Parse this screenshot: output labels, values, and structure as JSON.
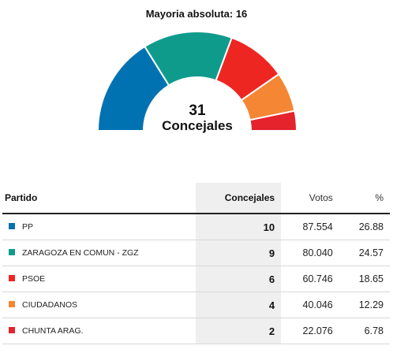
{
  "header": {
    "majority_label": "Mayoria absoluta: 16"
  },
  "chart_data": {
    "type": "pie",
    "subtype": "hemicycle",
    "total_seats": "31",
    "total_label": "Concejales",
    "columns": {
      "party": "Partido",
      "seats": "Concejales",
      "votes": "Votos",
      "pct": "%"
    },
    "rows": [
      {
        "party": "PP",
        "seats": 10,
        "seats_label": "10",
        "votes": "87.554",
        "pct": "26.88",
        "color": "#0072b2"
      },
      {
        "party": "ZARAGOZA EN COMUN - ZGZ",
        "seats": 9,
        "seats_label": "9",
        "votes": "80.040",
        "pct": "24.57",
        "color": "#0f9b8c"
      },
      {
        "party": "PSOE",
        "seats": 6,
        "seats_label": "6",
        "votes": "60.746",
        "pct": "18.65",
        "color": "#ee2622"
      },
      {
        "party": "CIUDADANOS",
        "seats": 4,
        "seats_label": "4",
        "votes": "40.046",
        "pct": "12.29",
        "color": "#f58634"
      },
      {
        "party": "CHUNTA ARAG.",
        "seats": 2,
        "seats_label": "2",
        "votes": "22.076",
        "pct": "6.78",
        "color": "#e5232d"
      }
    ]
  }
}
